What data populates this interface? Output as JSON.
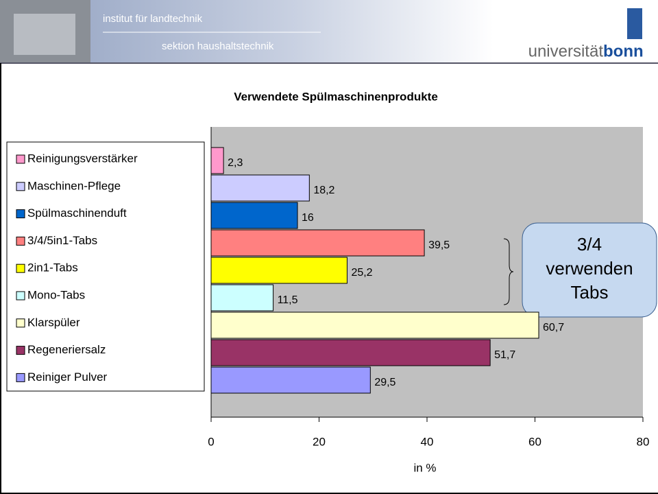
{
  "header": {
    "institute": "institut für landtechnik",
    "section": "sektion haushaltstechnik",
    "logo_left": "universität",
    "logo_right": "bonn"
  },
  "chart_data": {
    "type": "bar",
    "orientation": "horizontal",
    "title": "Verwendete Spülmaschinenprodukte",
    "categories": [
      "Reinigungsverstärker",
      "Maschinen-Pflege",
      "Spülmaschinenduft",
      "3/4/5in1-Tabs",
      "2in1-Tabs",
      "Mono-Tabs",
      "Klarspüler",
      "Regeneriersalz",
      "Reiniger Pulver"
    ],
    "values": [
      2.3,
      18.2,
      16,
      39.5,
      25.2,
      11.5,
      60.7,
      51.7,
      29.5
    ],
    "value_labels": [
      "2,3",
      "18,2",
      "16",
      "39,5",
      "25,2",
      "11,5",
      "60,7",
      "51,7",
      "29,5"
    ],
    "colors": [
      "#ff99cc",
      "#ccccff",
      "#0066cc",
      "#ff8080",
      "#ffff00",
      "#ccffff",
      "#ffffcc",
      "#993366",
      "#9999ff"
    ],
    "xlim": [
      0,
      80
    ],
    "xticks": [
      0,
      20,
      40,
      60,
      80
    ],
    "xlabel": "in %",
    "legend": "left",
    "annotation": [
      "3/4",
      "verwenden",
      "Tabs"
    ]
  }
}
